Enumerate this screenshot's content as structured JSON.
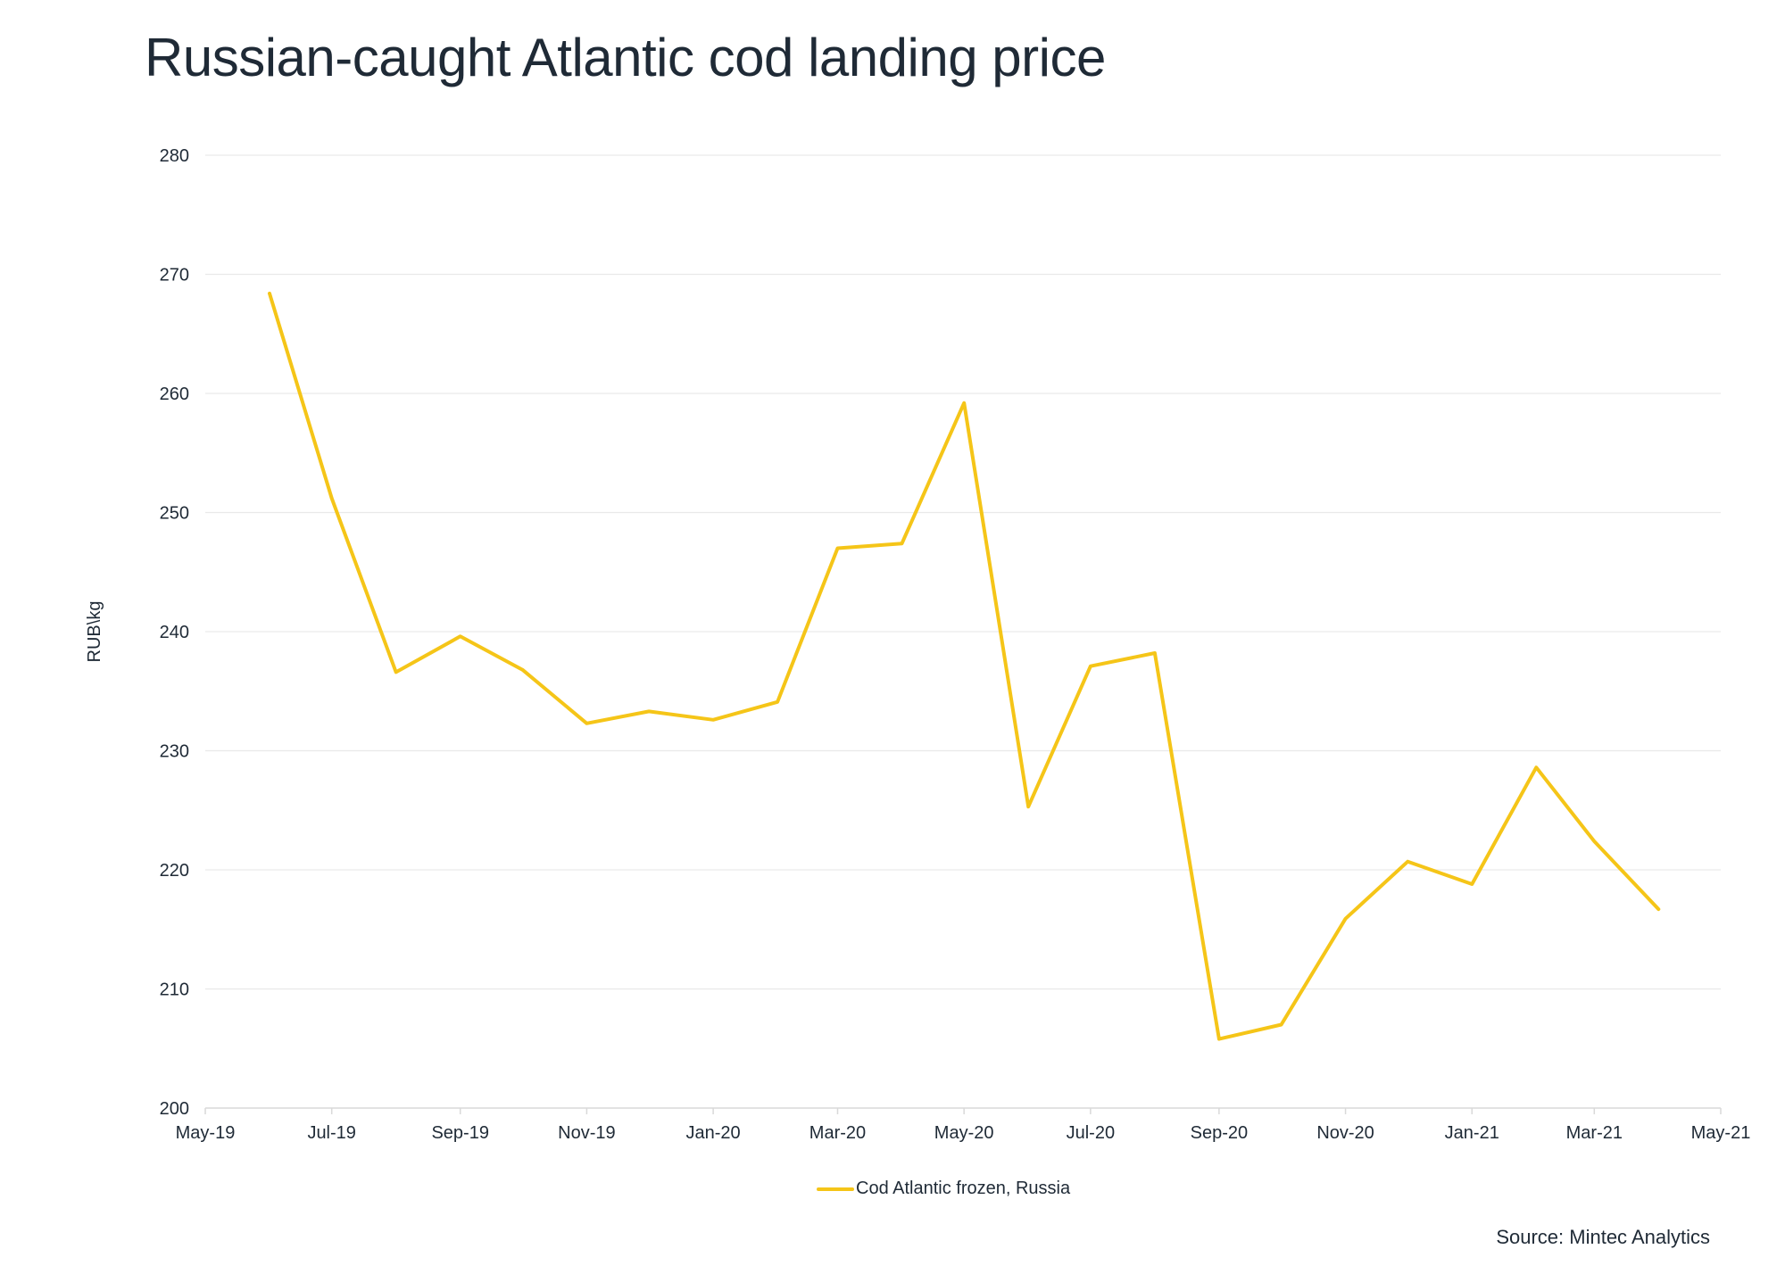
{
  "chart_data": {
    "type": "line",
    "title": "Russian-caught Atlantic cod landing price",
    "ylabel": "RUB\\kg",
    "xlabel": "",
    "ylim": [
      200,
      280
    ],
    "yticks": [
      200,
      210,
      220,
      230,
      240,
      250,
      260,
      270,
      280
    ],
    "xlim": [
      "2019-05-01",
      "2021-05-01"
    ],
    "xticks": [
      {
        "date": "2019-05-01",
        "label": "May-19"
      },
      {
        "date": "2019-07-01",
        "label": "Jul-19"
      },
      {
        "date": "2019-09-01",
        "label": "Sep-19"
      },
      {
        "date": "2019-11-01",
        "label": "Nov-19"
      },
      {
        "date": "2020-01-01",
        "label": "Jan-20"
      },
      {
        "date": "2020-03-01",
        "label": "Mar-20"
      },
      {
        "date": "2020-05-01",
        "label": "May-20"
      },
      {
        "date": "2020-07-01",
        "label": "Jul-20"
      },
      {
        "date": "2020-09-01",
        "label": "Sep-20"
      },
      {
        "date": "2020-11-01",
        "label": "Nov-20"
      },
      {
        "date": "2021-01-01",
        "label": "Jan-21"
      },
      {
        "date": "2021-03-01",
        "label": "Mar-21"
      },
      {
        "date": "2021-05-01",
        "label": "May-21"
      }
    ],
    "grid": "horizontal",
    "legend_position": "bottom-center",
    "series": [
      {
        "name": "Cod Atlantic frozen, Russia",
        "color": "#f5c518",
        "x": [
          "2019-06-01",
          "2019-07-01",
          "2019-08-01",
          "2019-09-01",
          "2019-10-01",
          "2019-11-01",
          "2019-12-01",
          "2020-01-01",
          "2020-02-01",
          "2020-03-01",
          "2020-04-01",
          "2020-05-01",
          "2020-06-01",
          "2020-07-01",
          "2020-08-01",
          "2020-09-01",
          "2020-10-01",
          "2020-11-01",
          "2020-12-01",
          "2021-01-01",
          "2021-02-01",
          "2021-03-01",
          "2021-04-01"
        ],
        "y": [
          268.4,
          251.2,
          236.6,
          239.6,
          236.8,
          232.3,
          233.3,
          232.6,
          234.1,
          247.0,
          247.4,
          259.2,
          225.3,
          237.1,
          238.2,
          205.8,
          207.0,
          215.9,
          220.7,
          218.8,
          228.6,
          222.4,
          216.7
        ]
      }
    ]
  },
  "source_text": "Source: Mintec Analytics",
  "colors": {
    "text": "#1f2a36",
    "grid": "#e9e9e9",
    "axis": "#d9d9d9",
    "series": "#f5c518"
  }
}
